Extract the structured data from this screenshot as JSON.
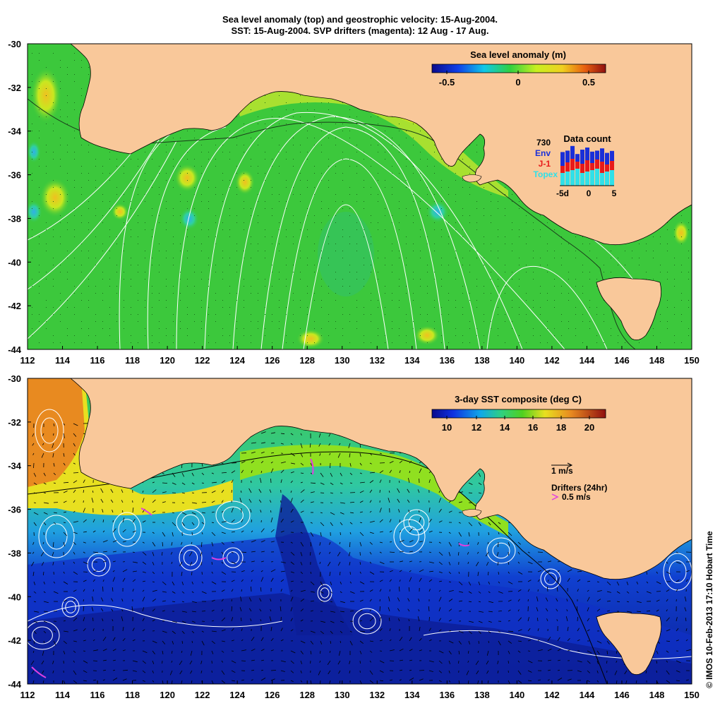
{
  "title": {
    "line1": "Sea level anomaly (top) and geostrophic velocity: 15-Aug-2004.",
    "line2": "SST: 15-Aug-2004. SVP drifters (magenta): 12 Aug - 17 Aug."
  },
  "axes": {
    "lon_ticks": [
      "112",
      "114",
      "116",
      "118",
      "120",
      "122",
      "124",
      "126",
      "128",
      "130",
      "132",
      "134",
      "136",
      "138",
      "140",
      "142",
      "144",
      "146",
      "148",
      "150"
    ],
    "lat_ticks": [
      "-30",
      "-32",
      "-34",
      "-36",
      "-38",
      "-40",
      "-42",
      "-44"
    ],
    "lon_range": [
      112,
      150
    ],
    "lat_range": [
      -44,
      -30
    ]
  },
  "top_panel": {
    "colorbar_title": "Sea level anomaly (m)",
    "colorbar_ticks": [
      "-0.5",
      "0",
      "0.5"
    ],
    "data_count": {
      "title": "Data count",
      "max_label": "730",
      "series": [
        {
          "label": "Env",
          "color": "#1a2fd8"
        },
        {
          "label": "J-1",
          "color": "#e81a1a"
        },
        {
          "label": "Topex",
          "color": "#30e0e8"
        }
      ],
      "x_ticks": [
        "-5d",
        "0",
        "5"
      ]
    }
  },
  "bottom_panel": {
    "colorbar_title": "3-day SST composite (deg C)",
    "colorbar_ticks": [
      "10",
      "12",
      "14",
      "16",
      "18",
      "20"
    ],
    "velocity_scale_label": "1 m/s",
    "drifter_label": "Drifters (24hr)",
    "drifter_scale_label": "0.5 m/s",
    "drifter_color": "#e040e0"
  },
  "colors": {
    "land": "#f9c89a",
    "sla_background": "#3cc83c",
    "sst_warm": "#e88a20",
    "sst_cold": "#0c1e96"
  },
  "credit": "© IMOS 10-Feb-2013 17:10 Hobart Time"
}
